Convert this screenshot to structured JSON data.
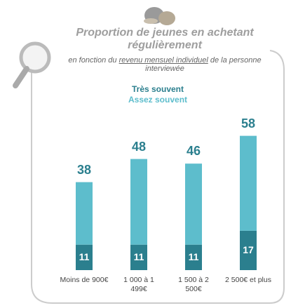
{
  "chart_data": {
    "type": "stacked-bar",
    "title": "Proportion de jeunes en achetant régulièrement",
    "subtitle": {
      "before": "en fonction du",
      "underlined": "revenu mensuel individuel",
      "after": "de la personne interviewée"
    },
    "categories": [
      "Moins de 900€",
      "1 000 à 1 499€",
      "1 500 à 2 500€",
      "2 500€ et plus"
    ],
    "series": [
      {
        "name": "Très souvent",
        "color": "#2b7f8e",
        "values": [
          11,
          11,
          11,
          17
        ]
      },
      {
        "name": "Assez souvent",
        "color": "#5dbdcc",
        "values": [
          27,
          37,
          35,
          41
        ]
      }
    ],
    "totals": [
      38,
      48,
      46,
      58
    ],
    "ylim": [
      0,
      60
    ]
  }
}
